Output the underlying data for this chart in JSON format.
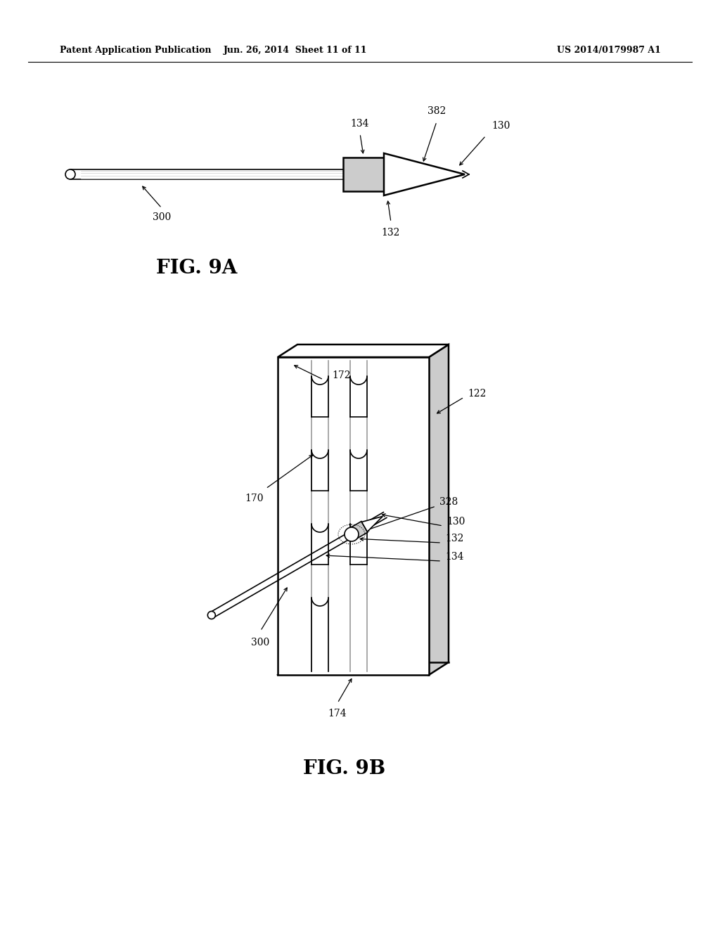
{
  "background_color": "#ffffff",
  "header_left": "Patent Application Publication",
  "header_center": "Jun. 26, 2014  Sheet 11 of 11",
  "header_right": "US 2014/0179987 A1",
  "fig9a_label": "FIG. 9A",
  "fig9b_label": "FIG. 9B",
  "line_color": "#000000",
  "gray_light": "#cccccc",
  "gray_mid": "#888888",
  "gray_dark": "#444444"
}
